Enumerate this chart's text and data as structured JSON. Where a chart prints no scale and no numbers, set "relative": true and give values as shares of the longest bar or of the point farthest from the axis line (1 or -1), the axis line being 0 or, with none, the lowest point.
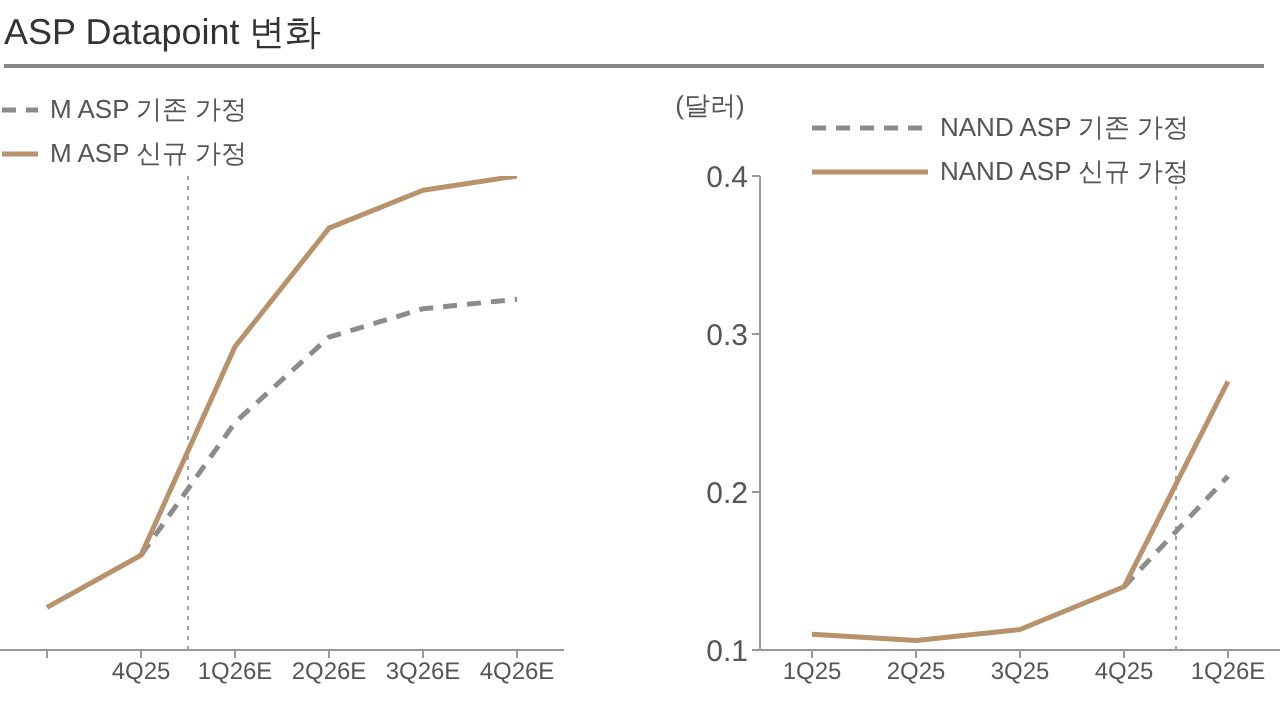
{
  "chart_data": [
    {
      "type": "line",
      "title": "ASP Datapoint 변화",
      "relative": true,
      "categories": [
        null,
        "4Q25",
        "1Q26E",
        "2Q26E",
        "3Q26E",
        "4Q26E"
      ],
      "series": [
        {
          "name": "M ASP 기존 가정",
          "color": "#8c8c8c",
          "line_style": "dashed",
          "values": [
            null,
            0.2,
            0.48,
            0.66,
            0.72,
            0.74
          ]
        },
        {
          "name": "M ASP 신규 가정",
          "color": "#b8926a",
          "line_style": "solid",
          "values": [
            0.09,
            0.2,
            0.64,
            0.89,
            0.97,
            1.0
          ]
        }
      ],
      "legend": "top left",
      "marker": "none"
    },
    {
      "type": "line",
      "ylabel": "(달러)",
      "categories": [
        "1Q25",
        "2Q25",
        "3Q25",
        "4Q25",
        "1Q26E"
      ],
      "ylim": [
        0.1,
        0.4
      ],
      "yticks": [
        0.1,
        0.2,
        0.3,
        0.4
      ],
      "series": [
        {
          "name": "NAND ASP 기존 가정",
          "color": "#8c8c8c",
          "line_style": "dashed",
          "values": [
            null,
            null,
            null,
            0.14,
            0.21
          ]
        },
        {
          "name": "NAND ASP 신규 가정",
          "color": "#b8926a",
          "line_style": "solid",
          "values": [
            0.11,
            0.106,
            0.113,
            0.14,
            0.27
          ]
        }
      ],
      "legend": "top right",
      "marker": "none"
    }
  ]
}
